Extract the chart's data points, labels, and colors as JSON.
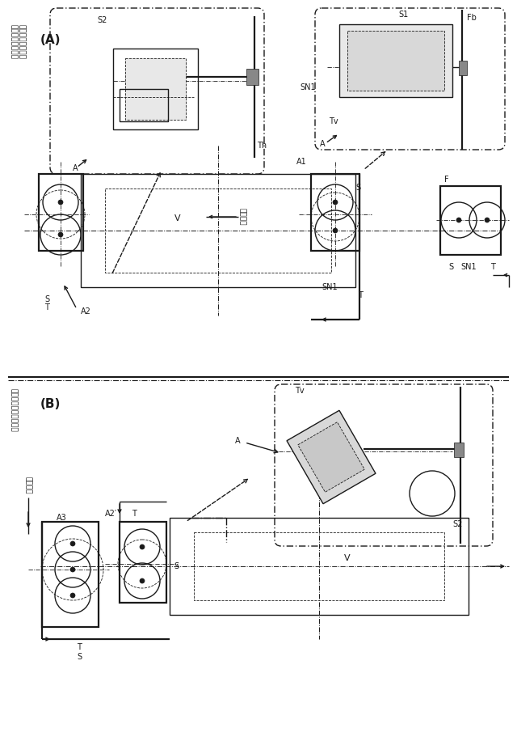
{
  "bg_color": "#ffffff",
  "line_color": "#1a1a1a",
  "fig_width": 6.4,
  "fig_height": 9.32,
  "section_A_label": "(A)",
  "section_A_subtitle_1": "ミニバンの左側の",
  "section_A_subtitle_2": "側面・上面洗浄時",
  "section_B_label": "(B)",
  "section_B_subtitle": "ミニバンの後面洗浄時",
  "label_V": "V",
  "label_direction": "走行方向",
  "label_A1": "A1",
  "label_A2": "A2",
  "label_A3": "A3",
  "label_A2p": "A2′",
  "label_S": "S",
  "label_S1": "S1",
  "label_S2": "S2",
  "label_T": "T",
  "label_Th": "Th",
  "label_Tv": "Tv",
  "label_SN1": "SN1",
  "label_F": "F",
  "label_Fb": "Fb",
  "label_A": "A"
}
